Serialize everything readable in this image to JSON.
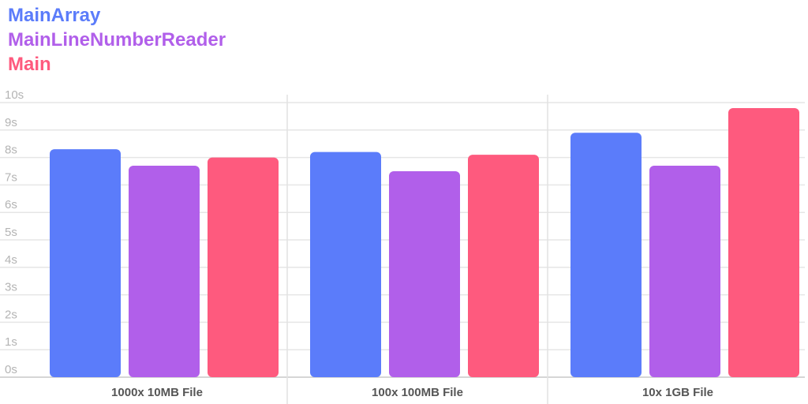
{
  "chart_data": {
    "type": "bar",
    "categories": [
      "1000x 10MB File",
      "100x 100MB File",
      "10x 1GB File"
    ],
    "series": [
      {
        "name": "MainArray",
        "color": "#5b7cfa",
        "values": [
          8.3,
          8.2,
          8.9
        ]
      },
      {
        "name": "MainLineNumberReader",
        "color": "#b15fea",
        "values": [
          7.7,
          7.5,
          7.7
        ]
      },
      {
        "name": "Main",
        "color": "#fe5a7e",
        "values": [
          8.0,
          8.1,
          9.8
        ]
      }
    ],
    "ytick_labels": [
      "0s",
      "1s",
      "2s",
      "3s",
      "4s",
      "5s",
      "6s",
      "7s",
      "8s",
      "9s",
      "10s"
    ],
    "ylim": [
      0,
      10
    ],
    "title": "",
    "xlabel": "",
    "ylabel": "",
    "grid": true,
    "legend_position": "top-left"
  }
}
